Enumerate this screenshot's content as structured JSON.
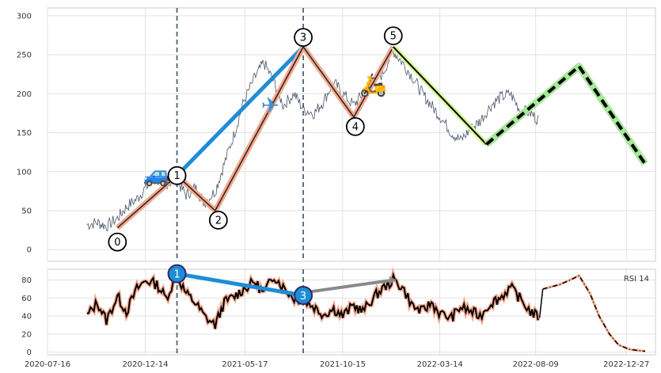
{
  "chart_data": [
    {
      "type": "line",
      "panel": "price",
      "x_ticks": [
        "2020-07-16",
        "2020-12-14",
        "2021-05-17",
        "2021-10-15",
        "2022-03-14",
        "2022-08-09",
        "2022-12-27"
      ],
      "x_range": [
        "2020-07-16",
        "2023-02-10"
      ],
      "ylim": [
        -15,
        310
      ],
      "y_ticks": [
        0,
        50,
        100,
        150,
        200,
        250,
        300
      ],
      "grid": true,
      "price_series": {
        "name": "",
        "x": [
          "2020-09-15",
          "2020-10-01",
          "2020-10-15",
          "2020-11-01",
          "2020-11-15",
          "2020-12-01",
          "2020-12-15",
          "2021-01-01",
          "2021-01-15",
          "2021-02-01",
          "2021-02-15",
          "2021-03-01",
          "2021-03-15",
          "2021-04-01",
          "2021-04-15",
          "2021-05-01",
          "2021-05-15",
          "2021-06-01",
          "2021-06-15",
          "2021-07-01",
          "2021-07-15",
          "2021-08-01",
          "2021-08-15",
          "2021-09-01",
          "2021-09-15",
          "2021-10-01",
          "2021-10-15",
          "2021-11-01",
          "2021-11-15",
          "2021-12-01",
          "2021-12-15",
          "2022-01-01",
          "2022-01-15",
          "2022-02-01",
          "2022-02-15",
          "2022-03-01",
          "2022-03-15",
          "2022-04-01",
          "2022-04-15",
          "2022-05-01",
          "2022-05-15",
          "2022-06-01",
          "2022-06-15",
          "2022-07-01",
          "2022-07-15",
          "2022-08-01",
          "2022-08-15"
        ],
        "y": [
          32,
          35,
          30,
          40,
          55,
          65,
          80,
          90,
          85,
          88,
          70,
          80,
          60,
          75,
          110,
          150,
          190,
          220,
          240,
          215,
          185,
          200,
          180,
          175,
          190,
          215,
          200,
          185,
          200,
          215,
          225,
          255,
          240,
          220,
          200,
          185,
          170,
          150,
          140,
          155,
          165,
          185,
          195,
          200,
          180,
          175,
          165
        ]
      },
      "wave_points": [
        {
          "label": "0",
          "x": "2020-11-01",
          "y": 28
        },
        {
          "label": "1",
          "x": "2021-02-01",
          "y": 95
        },
        {
          "label": "2",
          "x": "2021-04-01",
          "y": 50
        },
        {
          "label": "3",
          "x": "2021-08-15",
          "y": 260
        },
        {
          "label": "4",
          "x": "2021-11-01",
          "y": 170
        },
        {
          "label": "5",
          "x": "2022-01-01",
          "y": 260
        }
      ],
      "projection": {
        "solid_segment": [
          {
            "x": "2022-01-01",
            "y": 260
          },
          {
            "x": "2022-05-25",
            "y": 135
          }
        ],
        "dashed_path": [
          {
            "x": "2022-05-25",
            "y": 135
          },
          {
            "x": "2022-10-15",
            "y": 235
          },
          {
            "x": "2023-01-25",
            "y": 110
          }
        ]
      },
      "trend_line": {
        "from": {
          "x": "2021-02-01",
          "y": 95
        },
        "to": {
          "x": "2021-08-15",
          "y": 260
        }
      },
      "markers": [
        {
          "icon": "car-icon",
          "glyph": "🚙",
          "x": "2021-01-01",
          "y": 95
        },
        {
          "icon": "airplane-icon",
          "glyph": "✈",
          "x": "2021-06-25",
          "y": 183
        },
        {
          "icon": "scooter-icon",
          "glyph": "🛵",
          "x": "2021-12-01",
          "y": 210
        }
      ],
      "vlines": [
        "2021-02-01",
        "2021-08-15"
      ],
      "colors": {
        "price": "#4a5568",
        "wave": "#f4a98f",
        "trend": "#1f8dd6",
        "solid": "#000000",
        "dashed_glow": "#a6e89a"
      }
    },
    {
      "type": "line",
      "panel": "rsi",
      "legend": "RSI 14",
      "legend_placement": "top-right",
      "ylim": [
        -3,
        92
      ],
      "y_ticks": [
        0,
        20,
        40,
        60,
        80
      ],
      "rsi_series": {
        "x": [
          "2020-09-15",
          "2020-10-01",
          "2020-10-15",
          "2020-11-01",
          "2020-11-15",
          "2020-12-01",
          "2020-12-15",
          "2021-01-01",
          "2021-01-15",
          "2021-02-01",
          "2021-02-15",
          "2021-03-01",
          "2021-03-15",
          "2021-04-01",
          "2021-04-15",
          "2021-05-01",
          "2021-05-15",
          "2021-06-01",
          "2021-06-15",
          "2021-07-01",
          "2021-07-15",
          "2021-08-01",
          "2021-08-15",
          "2021-09-01",
          "2021-09-15",
          "2021-10-01",
          "2021-10-15",
          "2021-11-01",
          "2021-11-15",
          "2021-12-01",
          "2021-12-15",
          "2022-01-01",
          "2022-01-15",
          "2022-02-01",
          "2022-02-15",
          "2022-03-01",
          "2022-03-15",
          "2022-04-01",
          "2022-04-15",
          "2022-05-01",
          "2022-05-15",
          "2022-06-01",
          "2022-06-15",
          "2022-07-01",
          "2022-07-15",
          "2022-08-01",
          "2022-08-15"
        ],
        "y": [
          40,
          55,
          35,
          62,
          45,
          70,
          80,
          75,
          60,
          85,
          65,
          55,
          40,
          30,
          55,
          62,
          70,
          78,
          65,
          85,
          72,
          60,
          58,
          50,
          42,
          48,
          40,
          52,
          45,
          60,
          70,
          80,
          72,
          50,
          45,
          55,
          42,
          38,
          50,
          45,
          40,
          55,
          60,
          72,
          60,
          45,
          38
        ]
      },
      "forecast": {
        "x": [
          "2022-08-20",
          "2022-09-15",
          "2022-10-01",
          "2022-10-15",
          "2022-11-01",
          "2022-11-15",
          "2022-12-01",
          "2022-12-15",
          "2023-01-01",
          "2023-01-25"
        ],
        "y": [
          70,
          75,
          80,
          85,
          65,
          40,
          20,
          8,
          3,
          1
        ]
      },
      "points": [
        {
          "label": "1",
          "x": "2021-02-01",
          "y": 87,
          "color": "#1f8dd6"
        },
        {
          "label": "3",
          "x": "2021-08-15",
          "y": 63,
          "color": "#1f8dd6"
        }
      ],
      "trend_line": {
        "from": {
          "x": "2021-02-01",
          "y": 87
        },
        "to": {
          "x": "2021-08-15",
          "y": 63
        }
      },
      "grey_line": {
        "from": {
          "x": "2021-08-15",
          "y": 66
        },
        "to": {
          "x": "2022-01-01",
          "y": 80
        }
      }
    }
  ]
}
